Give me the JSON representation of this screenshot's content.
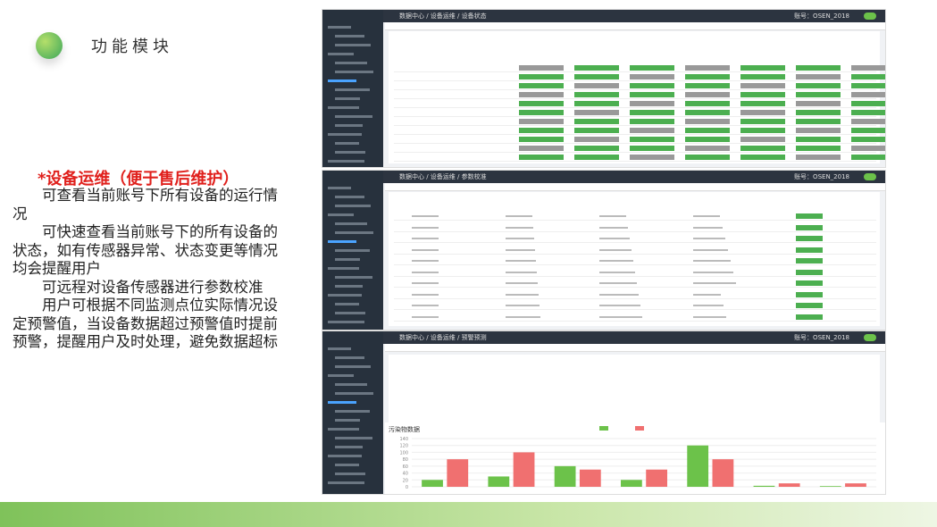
{
  "slide": {
    "title": "功能模块",
    "heading": "*设备运维（便于售后维护）",
    "paragraphs": [
      "可查看当前账号下所有设备的运行情况",
      "可快速查看当前账号下的所有设备的状态，如有传感器异常、状态变更等情况均会提醒用户",
      "可远程对设备传感器进行参数校准",
      "用户可根据不同监测点位实际情况设定预警值，当设备数据超过预警值时提前预警，提醒用户及时处理，避免数据超标"
    ]
  },
  "screens": [
    {
      "breadcrumb": "数据中心 / 设备运维 / 设备状态",
      "user": "账号：OSEN_2018"
    },
    {
      "breadcrumb": "数据中心 / 设备运维 / 参数校准",
      "user": "账号：OSEN_2018"
    },
    {
      "breadcrumb": "数据中心 / 设备运维 / 预警预测",
      "user": "账号：OSEN_2018"
    }
  ],
  "chart_data": {
    "type": "bar",
    "title": "污染物数据",
    "series": [
      {
        "color": "#6cc24a",
        "values": [
          20,
          30,
          60,
          20,
          120,
          3,
          2
        ]
      },
      {
        "color": "#f07070",
        "values": [
          80,
          100,
          50,
          50,
          80,
          10,
          10
        ]
      }
    ],
    "ylim": [
      0,
      140
    ],
    "yticks": [
      0,
      20,
      40,
      60,
      80,
      100,
      120,
      140
    ],
    "grid": true
  }
}
